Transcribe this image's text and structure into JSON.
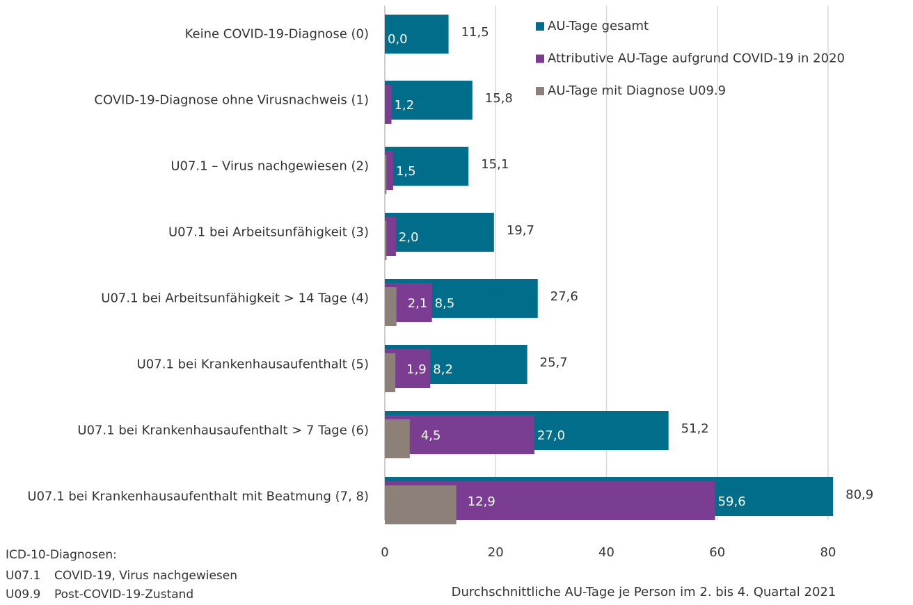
{
  "chart_data": {
    "type": "hbar_overlap",
    "categories": [
      "Keine COVID-19-Diagnose (0)",
      "COVID-19-Diagnose ohne Virusnachweis (1)",
      "U07.1 – Virus nachgewiesen (2)",
      "U07.1 bei Arbeitsunfähigkeit (3)",
      "U07.1 bei Arbeitsunfähigkeit > 14 Tage (4)",
      "U07.1 bei Krankenhausaufenthalt (5)",
      "U07.1 bei Krankenhausaufenthalt > 7 Tage (6)",
      "U07.1 bei Krankenhausaufenthalt mit Beatmung (7, 8)"
    ],
    "series": [
      {
        "name": "AU-Tage gesamt",
        "color": "#006e8a",
        "values": [
          11.5,
          15.8,
          15.1,
          19.7,
          27.6,
          25.7,
          51.2,
          80.9
        ],
        "value_labels": [
          "11,5",
          "15,8",
          "15,1",
          "19,7",
          "27,6",
          "25,7",
          "51,2",
          "80,9"
        ]
      },
      {
        "name": "Attributive AU-Tage aufgrund COVID-19 in 2020",
        "color": "#7b3d91",
        "values": [
          0.0,
          1.2,
          1.5,
          2.0,
          8.5,
          8.2,
          27.0,
          59.6
        ],
        "value_labels": [
          "0,0",
          "1,2",
          "1,5",
          "2,0",
          "8,5",
          "8,2",
          "27,0",
          "59,6"
        ]
      },
      {
        "name": "AU-Tage mit Diagnose U09.9",
        "color": "#8c8078",
        "values": [
          0,
          0,
          0.3,
          0.3,
          2.1,
          1.9,
          4.5,
          12.9
        ],
        "value_labels": [
          null,
          null,
          null,
          null,
          "2,1",
          "1,9",
          "4,5",
          "12,9"
        ]
      }
    ],
    "xlim": [
      0,
      80
    ],
    "xticks": [
      0,
      20,
      40,
      60,
      80
    ],
    "grid": true,
    "legend": "upper right",
    "xlabel": "Durchschnittliche AU-Tage je Person im 2. bis 4. Quartal 2021",
    "note_title": "ICD-10-Diagnosen:",
    "notes": [
      {
        "code": "U07.1",
        "text": "COVID-19, Virus nachgewiesen"
      },
      {
        "code": "U09.9",
        "text": "Post-COVID-19-Zustand"
      }
    ]
  }
}
